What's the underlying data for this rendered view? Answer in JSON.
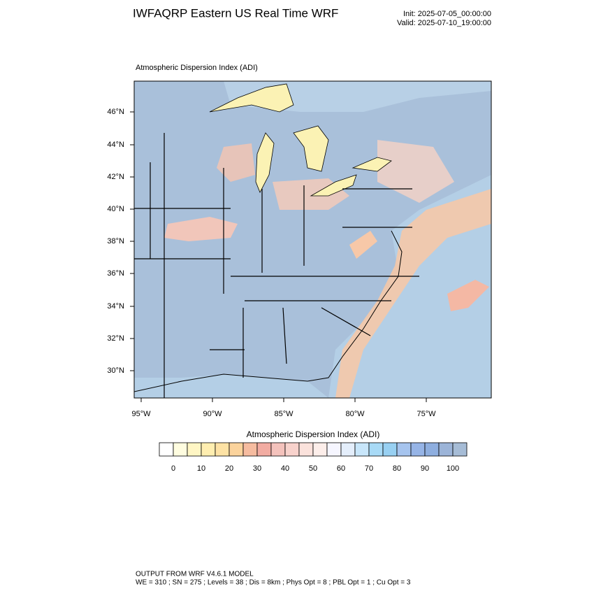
{
  "header": {
    "title": "IWFAQRP Eastern US Real Time WRF",
    "init": "Init: 2025-07-05_00:00:00",
    "valid": "Valid: 2025-07-10_19:00:00"
  },
  "map": {
    "title": "Atmospheric Dispersion Index   (ADI)",
    "lat_labels": [
      "46°N",
      "44°N",
      "42°N",
      "40°N",
      "38°N",
      "36°N",
      "34°N",
      "32°N",
      "30°N"
    ],
    "lon_labels": [
      "95°W",
      "90°W",
      "85°W",
      "80°W",
      "75°W"
    ]
  },
  "colorbar": {
    "title": "Atmospheric Dispersion Index  (ADI)",
    "ticks": [
      0,
      10,
      20,
      30,
      40,
      50,
      60,
      70,
      80,
      90,
      100
    ],
    "colors": [
      "#ffffff",
      "#fffde0",
      "#fff6c4",
      "#ffeeb0",
      "#fde2a4",
      "#fbd39c",
      "#f6bca0",
      "#f2aca2",
      "#f4c2bc",
      "#f8d2cc",
      "#fbe2dc",
      "#fdeeea",
      "#f6f6ff",
      "#e4eefb",
      "#c8e6fa",
      "#a8daf6",
      "#98d0f2",
      "#a6c4ee",
      "#96b4e6",
      "#8eaedf",
      "#9cb4d8",
      "#a6bcd6"
    ]
  },
  "footer": {
    "line1": "OUTPUT FROM WRF V4.6.1 MODEL",
    "line2": "WE = 310 ; SN = 275 ; Levels = 38 ; Dis = 8km ; Phys Opt = 8 ; PBL Opt = 1 ; Cu Opt = 3"
  }
}
